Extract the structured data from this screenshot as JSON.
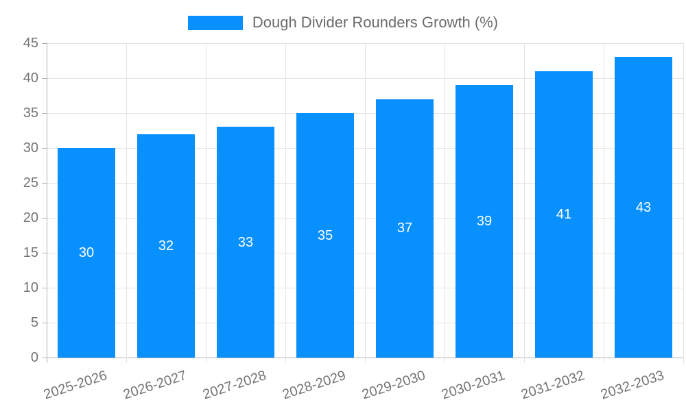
{
  "chart_data": {
    "type": "bar",
    "title": "Dough Divider Rounders Growth (%)",
    "categories": [
      "2025-2026",
      "2026-2027",
      "2027-2028",
      "2028-2029",
      "2029-2030",
      "2030-2031",
      "2031-2032",
      "2032-2033"
    ],
    "series": [
      {
        "name": "Dough Divider Rounders Growth (%)",
        "values": [
          30,
          32,
          33,
          35,
          37,
          39,
          41,
          43
        ]
      }
    ],
    "value_labels": [
      "30",
      "32",
      "33",
      "35",
      "37",
      "39",
      "41",
      "43"
    ],
    "xlabel": "",
    "ylabel": "",
    "ylim": [
      0,
      45
    ],
    "ytick_step": 5,
    "yticks": [
      "0",
      "5",
      "10",
      "15",
      "20",
      "25",
      "30",
      "35",
      "40",
      "45"
    ],
    "grid": true,
    "legend_position": "top-center",
    "colors": {
      "bar": "#0890ff",
      "value_label": "#ffffff",
      "axis_label": "#757575",
      "legend_text": "#6b6b6b",
      "gridline": "#e3e3e3",
      "axis_line": "#b0b0b0",
      "background": "#ffffff"
    }
  }
}
